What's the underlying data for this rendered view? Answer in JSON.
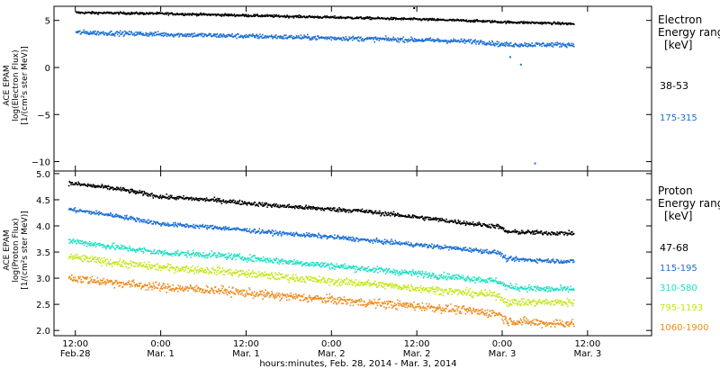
{
  "chart_data": {
    "x_axis": {
      "label": "hours:minutes, Feb. 28, 2014 - Mar.  3, 2014",
      "range_hours": [
        -3,
        81
      ],
      "ticks": [
        {
          "hours": 0,
          "time": "12:00",
          "date": "Feb.28"
        },
        {
          "hours": 12,
          "time": "0:00",
          "date": "Mar.  1"
        },
        {
          "hours": 24,
          "time": "12:00",
          "date": "Mar.  1"
        },
        {
          "hours": 36,
          "time": "0:00",
          "date": "Mar.  2"
        },
        {
          "hours": 48,
          "time": "12:00",
          "date": "Mar.  2"
        },
        {
          "hours": 60,
          "time": "0:00",
          "date": "Mar.  3"
        },
        {
          "hours": 72,
          "time": "12:00",
          "date": "Mar.  3"
        }
      ]
    },
    "panels": [
      {
        "type": "scatter",
        "name": "electron",
        "ylabel": [
          "ACE EPAM",
          "log(Electron Flux)",
          "[1/(cm²s ster MeV)]"
        ],
        "ylim": [
          -11,
          6.5
        ],
        "yticks": [
          5,
          0,
          -5,
          -10
        ],
        "legend": {
          "title": "Electron",
          "subtitle": "Energy range",
          "unit": "[keV]"
        },
        "series": [
          {
            "name": "38-53",
            "color": "#000000",
            "x": [
              0,
              12,
              24,
              36,
              48,
              57,
              60,
              66,
              70
            ],
            "y": [
              5.9,
              5.8,
              5.6,
              5.4,
              5.2,
              5.0,
              4.9,
              4.8,
              4.7
            ],
            "noise": 0.06
          },
          {
            "name": "175-315",
            "color": "#1c6fd4",
            "x": [
              0,
              12,
              24,
              36,
              48,
              57,
              60,
              66,
              70
            ],
            "y": [
              3.8,
              3.6,
              3.4,
              3.2,
              3.0,
              2.8,
              2.5,
              2.5,
              2.5
            ],
            "noise": 0.12
          }
        ],
        "outliers": [
          {
            "series": 1,
            "x": 64.5,
            "y": -10.1
          },
          {
            "series": 1,
            "x": 62.5,
            "y": 0.4
          },
          {
            "series": 1,
            "x": 61.0,
            "y": 1.2
          },
          {
            "series": 0,
            "x": 47.5,
            "y": 6.4
          }
        ]
      },
      {
        "type": "scatter",
        "name": "proton",
        "ylabel": [
          "ACE EPAM",
          "log(Proton Flux)",
          "[1/(cm²s ster MeV)]"
        ],
        "ylim": [
          1.9,
          5.05
        ],
        "yticks": [
          5.0,
          4.5,
          4.0,
          3.5,
          3.0,
          2.5,
          2.0
        ],
        "legend": {
          "title": "Proton",
          "subtitle": "Energy range",
          "unit": "[keV]"
        },
        "series": [
          {
            "name": "47-68",
            "color": "#000000",
            "x": [
              -1,
              6,
              12,
              20,
              28,
              36,
              40,
              48,
              56,
              59.5,
              60.5,
              66,
              70
            ],
            "y": [
              4.83,
              4.72,
              4.57,
              4.5,
              4.4,
              4.33,
              4.3,
              4.18,
              4.05,
              4.0,
              3.9,
              3.88,
              3.87
            ],
            "noise": 0.02
          },
          {
            "name": "115-195",
            "color": "#1c6fd4",
            "x": [
              -1,
              6,
              12,
              20,
              28,
              36,
              40,
              48,
              56,
              59.5,
              60.5,
              66,
              70
            ],
            "y": [
              4.33,
              4.2,
              4.05,
              3.98,
              3.88,
              3.8,
              3.75,
              3.65,
              3.55,
              3.5,
              3.38,
              3.35,
              3.33
            ],
            "noise": 0.02
          },
          {
            "name": "310-580",
            "color": "#1de0c4",
            "x": [
              -1,
              6,
              12,
              20,
              28,
              36,
              40,
              48,
              56,
              59.5,
              60.5,
              66,
              70
            ],
            "y": [
              3.73,
              3.6,
              3.5,
              3.45,
              3.35,
              3.25,
              3.2,
              3.1,
              3.0,
              2.95,
              2.85,
              2.8,
              2.8
            ],
            "noise": 0.03
          },
          {
            "name": "795-1193",
            "color": "#c6e61a",
            "x": [
              -1,
              6,
              12,
              20,
              28,
              36,
              40,
              48,
              56,
              59.5,
              60.5,
              66,
              70
            ],
            "y": [
              3.42,
              3.3,
              3.22,
              3.15,
              3.05,
              2.95,
              2.92,
              2.82,
              2.72,
              2.68,
              2.55,
              2.55,
              2.55
            ],
            "noise": 0.035
          },
          {
            "name": "1060-1900",
            "color": "#ee8a1a",
            "x": [
              -1,
              6,
              12,
              20,
              28,
              36,
              40,
              48,
              56,
              59.5,
              60.5,
              66,
              70
            ],
            "y": [
              3.02,
              2.92,
              2.84,
              2.78,
              2.68,
              2.6,
              2.55,
              2.48,
              2.38,
              2.33,
              2.2,
              2.15,
              2.15
            ],
            "noise": 0.04
          }
        ]
      }
    ]
  }
}
